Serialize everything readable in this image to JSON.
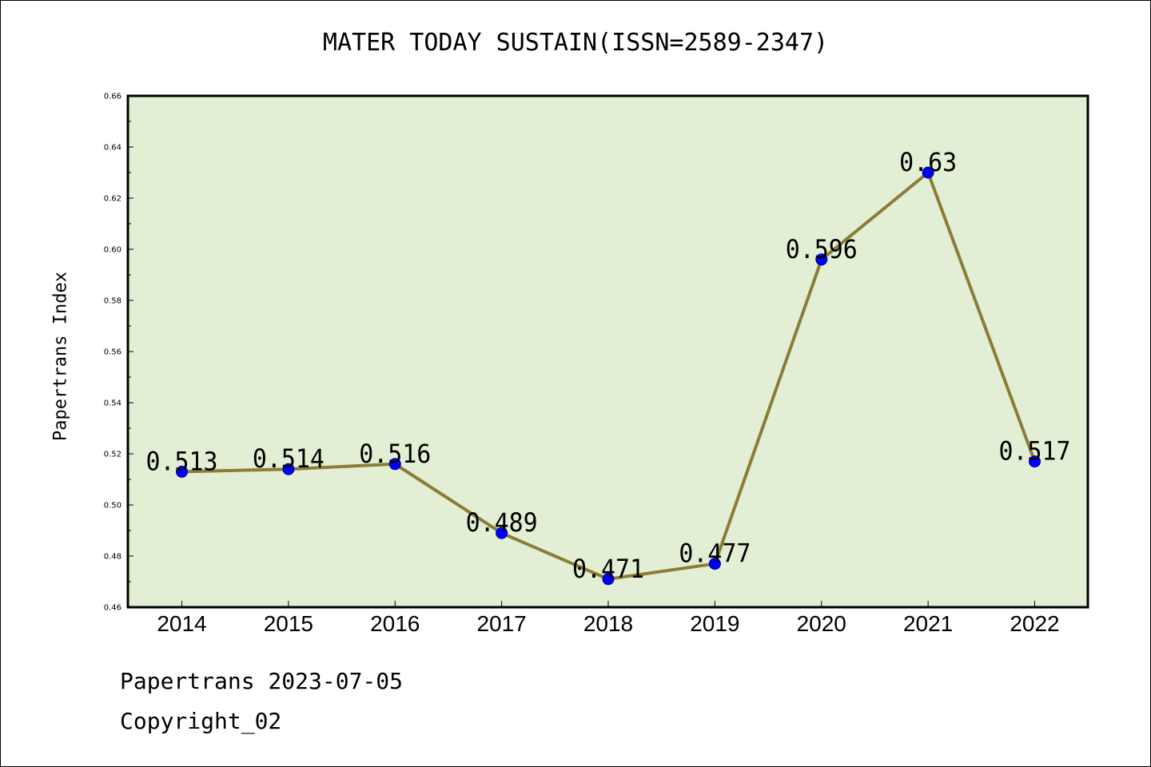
{
  "chart_data": {
    "type": "line",
    "title": "MATER TODAY SUSTAIN(ISSN=2589-2347)",
    "ylabel": "Papertrans Index",
    "xlabel": "",
    "categories": [
      "2014",
      "2015",
      "2016",
      "2017",
      "2018",
      "2019",
      "2020",
      "2021",
      "2022"
    ],
    "values": [
      0.513,
      0.514,
      0.516,
      0.489,
      0.471,
      0.477,
      0.596,
      0.63,
      0.517
    ],
    "data_labels": [
      "0.513",
      "0.514",
      "0.516",
      "0.489",
      "0.471",
      "0.477",
      "0.596",
      "0.63",
      "0.517"
    ],
    "ylim": [
      0.46,
      0.66
    ],
    "yticks": [
      "0.46",
      "0.48",
      "0.50",
      "0.52",
      "0.54",
      "0.56",
      "0.58",
      "0.60",
      "0.62",
      "0.64",
      "0.66"
    ],
    "grid": false,
    "colors": {
      "plot_background": "#e2efd5",
      "line": "#8b7d36",
      "marker": "#0000ff"
    }
  },
  "footer": {
    "line1": "Papertrans 2023-07-05",
    "line2": "Copyright_02"
  }
}
